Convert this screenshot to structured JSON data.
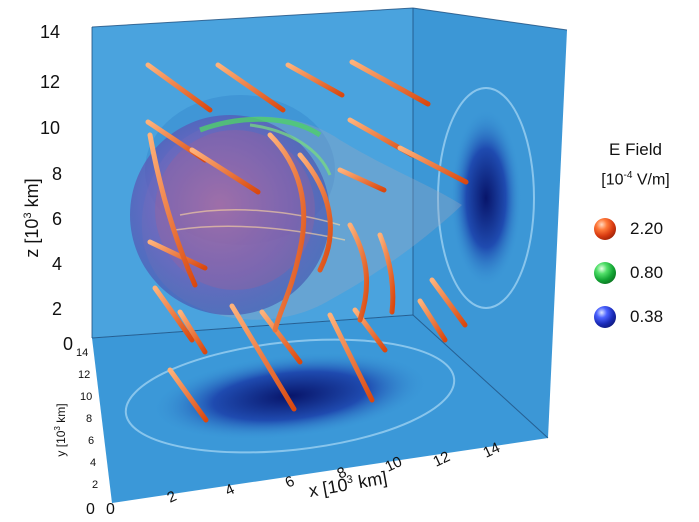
{
  "axes": {
    "z_label": "z [10",
    "z_exp": "3",
    "z_unit": " km]",
    "x_label": "x [10",
    "x_exp": "3",
    "x_unit": " km]",
    "y_label": "y [10",
    "y_exp": "3",
    "y_unit": " km]",
    "z_ticks": [
      "0",
      "2",
      "4",
      "6",
      "8",
      "10",
      "12",
      "14"
    ],
    "x_ticks": [
      "0",
      "2",
      "4",
      "6",
      "8",
      "10",
      "12",
      "14"
    ],
    "y_ticks": [
      "0",
      "2",
      "4",
      "6",
      "8",
      "10",
      "12",
      "14"
    ]
  },
  "legend": {
    "title": "E Field",
    "units_prefix": "[10",
    "units_exp": "-4",
    "units_suffix": " V/m]",
    "items": [
      {
        "label": "2.20",
        "color": "#d83a10"
      },
      {
        "label": "0.80",
        "color": "#13a534"
      },
      {
        "label": "0.38",
        "color": "#1a2bb8"
      }
    ]
  },
  "colors": {
    "background_plane": "#3a9ad8",
    "field_line": "#e86a2a",
    "shadow": "#0a1a6a"
  }
}
